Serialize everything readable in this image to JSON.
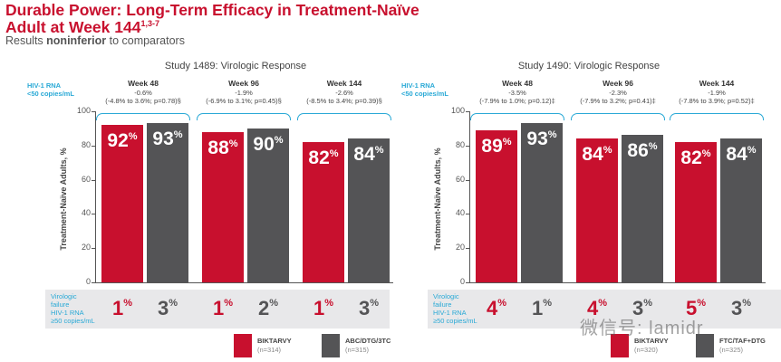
{
  "header": {
    "title": "Durable Power: Long-Term Efficacy in Treatment-Naïve Adult at Week 144",
    "title_sup": "1,3-7",
    "subtitle_pre": "Results ",
    "subtitle_bold": "noninferior",
    "subtitle_post": " to comparators"
  },
  "rna_label": [
    "HIV-1 RNA",
    "<50 copies/mL"
  ],
  "fail_label": [
    "Virologic",
    "failure",
    "HIV-1 RNA",
    "≥50 copies/mL"
  ],
  "colors": {
    "biktarvy": "#c8102e",
    "comparator": "#545456",
    "accent": "#29a9d6"
  },
  "watermark": "微信号: lamidr",
  "chart_data": [
    {
      "type": "bar",
      "title": "Study 1489: Virologic Response",
      "ylabel": "Treatment-Naïve Adults, %",
      "ylim": [
        0,
        100
      ],
      "yticks": [
        0,
        20,
        40,
        60,
        80,
        100
      ],
      "categories": [
        "Week 48",
        "Week 96",
        "Week 144"
      ],
      "differences": [
        "-0.6%",
        "-1.9%",
        "-2.6%"
      ],
      "ci": [
        "(-4.8% to 3.6%; p=0.78)§",
        "(-6.9% to 3.1%; p=0.45)§",
        "(-8.5% to 3.4%; p=0.39)§"
      ],
      "series": [
        {
          "name": "BIKTARVY",
          "n": "(n=314)",
          "values": [
            92,
            88,
            82
          ],
          "failure": [
            1,
            1,
            1
          ]
        },
        {
          "name": "ABC/DTG/3TC",
          "n": "(n=315)",
          "values": [
            93,
            90,
            84
          ],
          "failure": [
            3,
            2,
            3
          ]
        }
      ]
    },
    {
      "type": "bar",
      "title": "Study 1490: Virologic Response",
      "ylabel": "Treatment-Naïve Adults, %",
      "ylim": [
        0,
        100
      ],
      "yticks": [
        0,
        20,
        40,
        60,
        80,
        100
      ],
      "categories": [
        "Week 48",
        "Week 96",
        "Week 144"
      ],
      "differences": [
        "-3.5%",
        "-2.3%",
        "-1.9%"
      ],
      "ci": [
        "(-7.9% to 1.0%; p=0.12)‡",
        "(-7.9% to 3.2%; p=0.41)‡",
        "(-7.8% to 3.9%; p=0.52)‡"
      ],
      "series": [
        {
          "name": "BIKTARVY",
          "n": "(n=320)",
          "values": [
            89,
            84,
            82
          ],
          "failure": [
            4,
            4,
            5
          ]
        },
        {
          "name": "FTC/TAF+DTG",
          "n": "(n=325)",
          "values": [
            93,
            86,
            84
          ],
          "failure": [
            1,
            3,
            3
          ]
        }
      ]
    }
  ]
}
